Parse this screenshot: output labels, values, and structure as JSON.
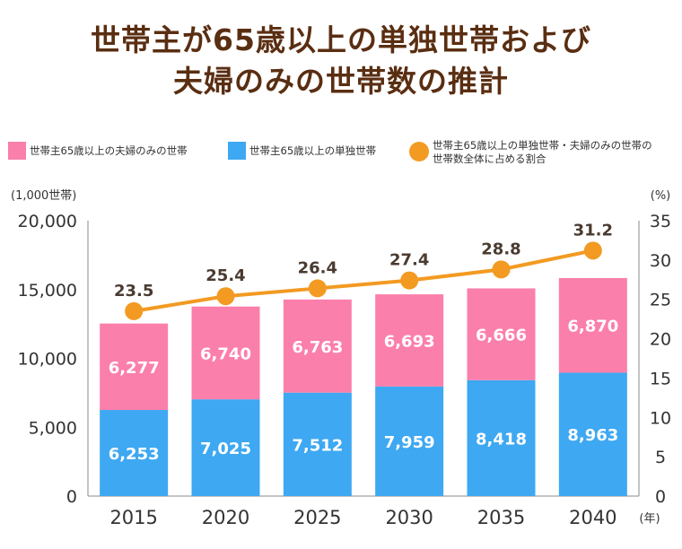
{
  "title": {
    "line1": "世帯主が65歳以上の単独世帯および",
    "line2": "夫婦のみの世帯数の推計"
  },
  "legend": {
    "couple": "世帯主65歳以上の夫婦のみの世帯",
    "single": "世帯主65歳以上の単独世帯",
    "ratio_line1": "世帯主65歳以上の単独世帯・夫婦のみの世帯の",
    "ratio_line2": "世帯数全体に占める割合"
  },
  "colors": {
    "couple": "#fb7fab",
    "single": "#3ea8f2",
    "ratio": "#f39a22",
    "title": "#5a2e12"
  },
  "chart_data": {
    "type": "bar",
    "stacked": true,
    "categories": [
      "2015",
      "2020",
      "2025",
      "2030",
      "2035",
      "2040"
    ],
    "series": [
      {
        "name": "世帯主65歳以上の単独世帯",
        "values": [
          6253,
          7025,
          7512,
          7959,
          8418,
          8963
        ],
        "labels": [
          "6,253",
          "7,025",
          "7,512",
          "7,959",
          "8,418",
          "8,963"
        ]
      },
      {
        "name": "世帯主65歳以上の夫婦のみの世帯",
        "values": [
          6277,
          6740,
          6763,
          6693,
          6666,
          6870
        ],
        "labels": [
          "6,277",
          "6,740",
          "6,763",
          "6,693",
          "6,666",
          "6,870"
        ]
      }
    ],
    "line_series": {
      "name": "世帯主65歳以上の単独世帯・夫婦のみの世帯の世帯数全体に占める割合",
      "values": [
        23.5,
        25.4,
        26.4,
        27.4,
        28.8,
        31.2
      ],
      "labels": [
        "23.5",
        "25.4",
        "26.4",
        "27.4",
        "28.8",
        "31.2"
      ]
    },
    "y_left": {
      "unit": "(1,000世帯)",
      "ylim": [
        0,
        20000
      ],
      "ticks": [
        0,
        5000,
        10000,
        15000,
        20000
      ],
      "tick_labels": [
        "0",
        "5,000",
        "10,000",
        "15,000",
        "20,000"
      ]
    },
    "y_right": {
      "unit": "(%)",
      "ylim": [
        0,
        35
      ],
      "ticks": [
        0,
        5,
        10,
        15,
        20,
        25,
        30,
        35
      ],
      "tick_labels": [
        "0",
        "5",
        "10",
        "15",
        "20",
        "25",
        "30",
        "35"
      ]
    },
    "x_unit": "(年)",
    "grid": false
  }
}
